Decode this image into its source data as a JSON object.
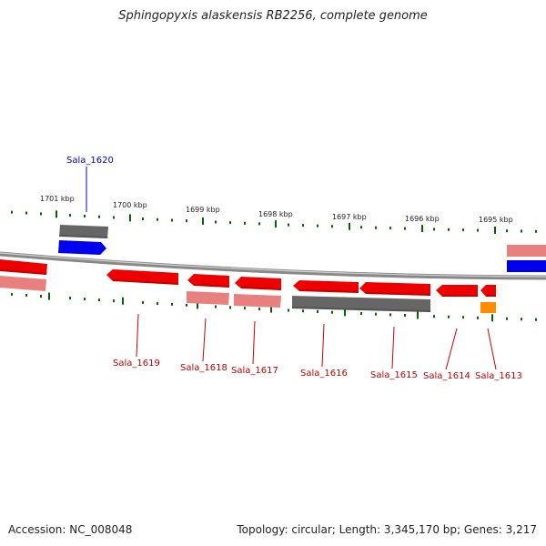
{
  "title": "Sphingopyxis alaskensis RB2256, complete genome",
  "footer": {
    "accession": "Accession: NC_008048",
    "topology": "Topology: circular; Length: 3,345,170 bp; Genes: 3,217"
  },
  "ruler": [
    {
      "kbp": 1701,
      "label": "1701 kbp"
    },
    {
      "kbp": 1700,
      "label": "1700 kbp"
    },
    {
      "kbp": 1699,
      "label": "1699 kbp"
    },
    {
      "kbp": 1698,
      "label": "1698 kbp"
    },
    {
      "kbp": 1697,
      "label": "1697 kbp"
    },
    {
      "kbp": 1696,
      "label": "1696 kbp"
    },
    {
      "kbp": 1695,
      "label": "1695 kbp"
    }
  ],
  "genes": [
    {
      "name": "Sala_1620",
      "color": "#0000cc",
      "highlight": true
    },
    {
      "name": "Sala_1619",
      "color": "#cc0000",
      "highlight": false
    },
    {
      "name": "Sala_1618",
      "color": "#cc0000",
      "highlight": false
    },
    {
      "name": "Sala_1617",
      "color": "#cc0000",
      "highlight": false
    },
    {
      "name": "Sala_1616",
      "color": "#cc0000",
      "highlight": false
    },
    {
      "name": "Sala_1615",
      "color": "#cc0000",
      "highlight": false
    },
    {
      "name": "Sala_1614",
      "color": "#cc0000",
      "highlight": false
    },
    {
      "name": "Sala_1613",
      "color": "#cc0000",
      "highlight": false
    }
  ],
  "colors": {
    "backbone": "#888888",
    "forward_cds": "#0000ee",
    "reverse_cds": "#ee0000",
    "reverse_cds_light": "#f08080",
    "gene_gray": "#666666",
    "rna_orange": "#ff8c00",
    "tick_green": "#006600"
  }
}
